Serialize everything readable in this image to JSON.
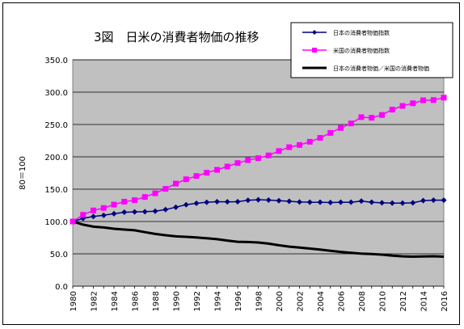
{
  "chart_data": {
    "type": "line",
    "title": "3図　日米の消費者物価の推移",
    "ylabel": "80＝100",
    "xlabel": "",
    "ylim": [
      0,
      350
    ],
    "yticks": [
      "0.0",
      "50.0",
      "100.0",
      "150.0",
      "200.0",
      "250.0",
      "300.0",
      "350.0"
    ],
    "x": [
      1980,
      1981,
      1982,
      1983,
      1984,
      1985,
      1986,
      1987,
      1988,
      1989,
      1990,
      1991,
      1992,
      1993,
      1994,
      1995,
      1996,
      1997,
      1998,
      1999,
      2000,
      2001,
      2002,
      2003,
      2004,
      2005,
      2006,
      2007,
      2008,
      2009,
      2010,
      2011,
      2012,
      2013,
      2014,
      2015,
      2016
    ],
    "xticks": [
      "1980",
      "1982",
      "1984",
      "1986",
      "1988",
      "1990",
      "1992",
      "1994",
      "1996",
      "1998",
      "2000",
      "2002",
      "2004",
      "2006",
      "2008",
      "2010",
      "2012",
      "2014",
      "2016"
    ],
    "grid": "horizontal",
    "legend_position": "top-right",
    "plot_background": "#c0c0c0",
    "series": [
      {
        "name": "日本の消費者物価指数",
        "color": "#000080",
        "marker": "diamond",
        "values": [
          100,
          104.9,
          107.7,
          109.6,
          112.0,
          114.3,
          114.9,
          115.1,
          115.9,
          118.4,
          122.1,
          126.0,
          128.1,
          129.7,
          130.6,
          130.4,
          130.6,
          132.8,
          133.6,
          133.1,
          132.2,
          131.2,
          130.1,
          129.8,
          129.8,
          129.4,
          129.8,
          129.8,
          131.6,
          129.8,
          128.9,
          128.5,
          128.5,
          128.9,
          132.3,
          133.0,
          133.0
        ]
      },
      {
        "name": "米国の消費者物価指数",
        "color": "#ff00ff",
        "marker": "square",
        "values": [
          100,
          110.3,
          117.1,
          120.9,
          126.1,
          130.6,
          133.0,
          137.9,
          143.6,
          150.5,
          158.6,
          165.3,
          170.3,
          175.4,
          179.9,
          185.0,
          190.4,
          194.8,
          197.9,
          202.2,
          209.0,
          214.9,
          218.3,
          223.3,
          229.3,
          237.0,
          244.7,
          251.6,
          261.3,
          260.4,
          264.7,
          273.0,
          278.7,
          282.8,
          287.4,
          287.8,
          291.5
        ]
      },
      {
        "name": "日本の消費者物価／米国の消費者物価",
        "color": "#000000",
        "marker": "none",
        "values": [
          100,
          95.1,
          92.0,
          90.7,
          88.8,
          87.5,
          86.4,
          83.5,
          80.7,
          78.7,
          77.0,
          76.2,
          75.2,
          74.0,
          72.6,
          70.5,
          68.6,
          68.2,
          67.5,
          65.8,
          63.3,
          61.1,
          59.6,
          58.1,
          56.6,
          54.6,
          53.0,
          51.6,
          50.4,
          49.8,
          48.7,
          47.1,
          46.1,
          45.6,
          46.0,
          46.2,
          45.6
        ]
      }
    ]
  }
}
